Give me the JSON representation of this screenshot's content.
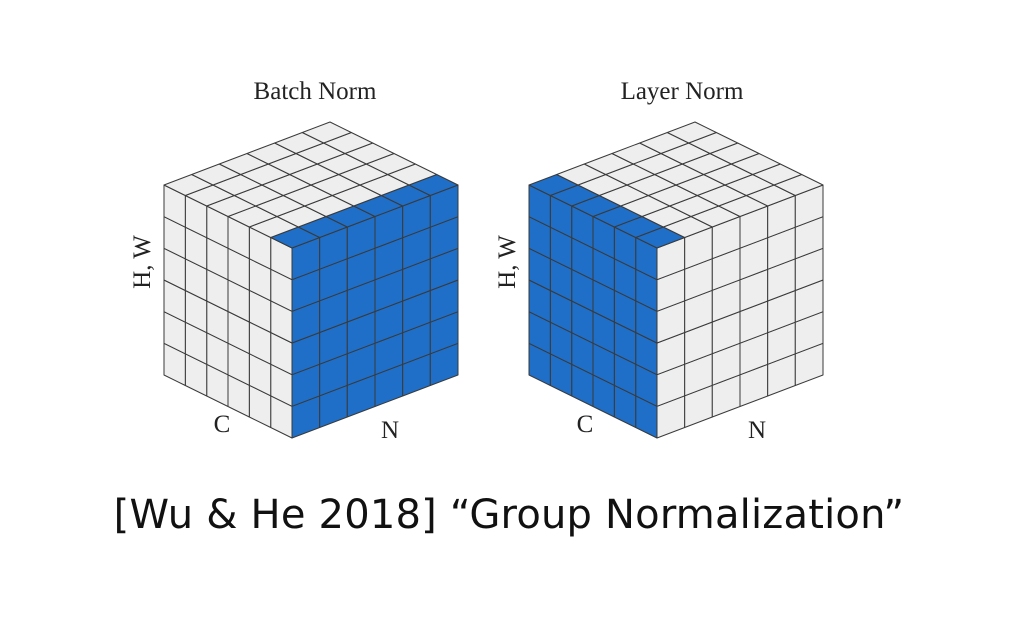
{
  "figure": {
    "panels": [
      {
        "title": "Batch Norm",
        "label_vertical": "H, W",
        "label_c": "C",
        "label_n": "N",
        "highlight": "n-face",
        "n": 6,
        "c": 6,
        "hw": 6
      },
      {
        "title": "Layer Norm",
        "label_vertical": "H, W",
        "label_c": "C",
        "label_n": "N",
        "highlight": "c-face",
        "n": 6,
        "c": 6,
        "hw": 6
      }
    ],
    "caption": "[Wu & He 2018] “Group Normalization”"
  },
  "colors": {
    "blue": "#1f6fc8",
    "gray": "#eeeeee",
    "line": "#3a3a3a"
  }
}
